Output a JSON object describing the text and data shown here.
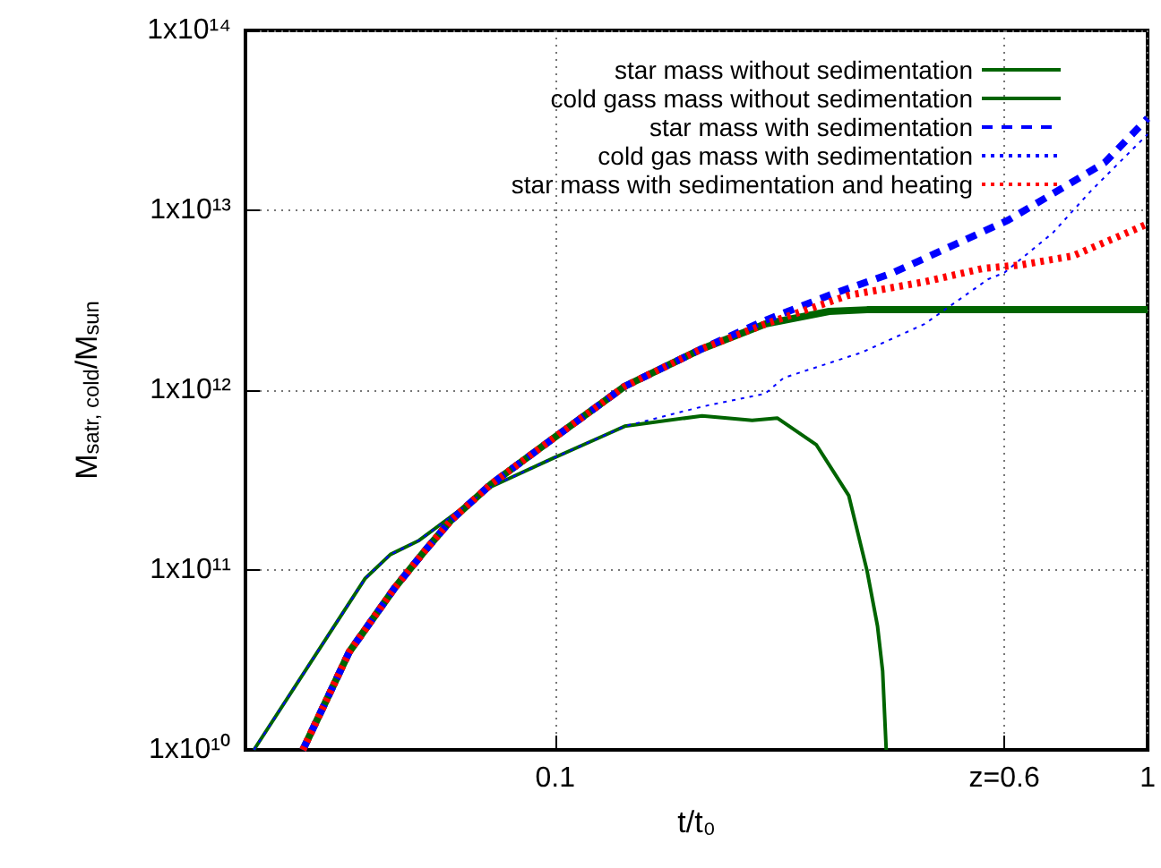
{
  "chart_data": {
    "type": "line",
    "xlabel": "t/t₀",
    "ylabel": "M$_{satr, cold}$/M$_{sun}$",
    "log": "xy",
    "xlim": [
      0.03,
      1
    ],
    "xticks": [
      0.1,
      {
        "value": 0.573,
        "label": "z=0.6"
      },
      1
    ],
    "ylim": [
      10000000000.0,
      100000000000000.0
    ],
    "yticks": [
      {
        "value": 10000000000.0,
        "label": "1x10¹⁰"
      },
      {
        "value": 100000000000.0,
        "label": "1x10¹¹"
      },
      {
        "value": 1000000000000.0,
        "label": "1x10¹²"
      },
      {
        "value": 10000000000000.0,
        "label": "1x10¹³"
      },
      {
        "value": 100000000000000.0,
        "label": "1x10¹⁴"
      }
    ],
    "grid": true,
    "legend": "top right",
    "marker": "none",
    "series": [
      {
        "name": "star mass without sedimentation",
        "color": "#006400",
        "line_style": "solid",
        "x": [
          0.0375,
          0.0449,
          0.0535,
          0.0605,
          0.0668,
          0.0779,
          0.0993,
          0.131,
          0.177,
          0.226,
          0.29,
          0.336,
          1
        ],
        "values": [
          10000000000.0,
          35000000000.0,
          79000000000.0,
          130000000000.0,
          190000000000.0,
          300000000000.0,
          540000000000.0,
          1050000000000.0,
          1700000000000.0,
          2330000000000.0,
          2740000000000.0,
          2800000000000.0,
          2800000000000.0
        ]
      },
      {
        "name": "cold gass mass without sedimentation",
        "color": "#006400",
        "line_style": "solid",
        "x": [
          0.031,
          0.0478,
          0.0527,
          0.0589,
          0.0779,
          0.0993,
          0.1216,
          0.131,
          0.177,
          0.215,
          0.237,
          0.276,
          0.313,
          0.336,
          0.35,
          0.357,
          0.362
        ],
        "values": [
          10000000000.0,
          90000000000.0,
          122000000000.0,
          146000000000.0,
          290000000000.0,
          419000000000.0,
          564000000000.0,
          630000000000.0,
          720000000000.0,
          680000000000.0,
          700000000000.0,
          496000000000.0,
          259000000000.0,
          99000000000.0,
          48600000000.0,
          27400000000.0,
          10000000000.0
        ]
      },
      {
        "name": "star mass with sedimentation",
        "color": "#0000ff",
        "line_style": "dashed",
        "x": [
          0.0375,
          0.0449,
          0.0535,
          0.0605,
          0.0668,
          0.0779,
          0.0993,
          0.131,
          0.177,
          0.226,
          0.29,
          0.372,
          0.475,
          0.581,
          0.726,
          0.846,
          1
        ],
        "values": [
          10000000000.0,
          35000000000.0,
          79000000000.0,
          130000000000.0,
          190000000000.0,
          300000000000.0,
          540000000000.0,
          1050000000000.0,
          1700000000000.0,
          2440000000000.0,
          3370000000000.0,
          4500000000000.0,
          6500000000000.0,
          8800000000000.0,
          13600000000000.0,
          18400000000000.0,
          32500000000000.0
        ]
      },
      {
        "name": "cold gas mass with sedimentation",
        "color": "#0000ff",
        "line_style": "dotted",
        "x": [
          0.031,
          0.0478,
          0.0527,
          0.0589,
          0.0779,
          0.0993,
          0.1216,
          0.131,
          0.177,
          0.226,
          0.243,
          0.329,
          0.42,
          0.538,
          0.573,
          0.692,
          0.8,
          1
        ],
        "values": [
          10000000000.0,
          90000000000.0,
          122000000000.0,
          146000000000.0,
          290000000000.0,
          419000000000.0,
          564000000000.0,
          630000000000.0,
          810000000000.0,
          955000000000.0,
          1170000000000.0,
          1620000000000.0,
          2330000000000.0,
          4140000000000.0,
          4500000000000.0,
          7500000000000.0,
          12700000000000.0,
          26500000000000.0
        ]
      },
      {
        "name": "star mass with sedimentation and heating",
        "color": "#ff0000",
        "line_style": "dotted",
        "x": [
          0.0375,
          0.0449,
          0.0535,
          0.0605,
          0.0668,
          0.0779,
          0.0993,
          0.131,
          0.177,
          0.226,
          0.313,
          0.42,
          0.527,
          0.611,
          0.747,
          0.888,
          1
        ],
        "values": [
          10000000000.0,
          35000000000.0,
          79000000000.0,
          130000000000.0,
          190000000000.0,
          300000000000.0,
          540000000000.0,
          1050000000000.0,
          1700000000000.0,
          2330000000000.0,
          3370000000000.0,
          4000000000000.0,
          4750000000000.0,
          4970000000000.0,
          5570000000000.0,
          7100000000000.0,
          8400000000000.0
        ]
      }
    ]
  }
}
